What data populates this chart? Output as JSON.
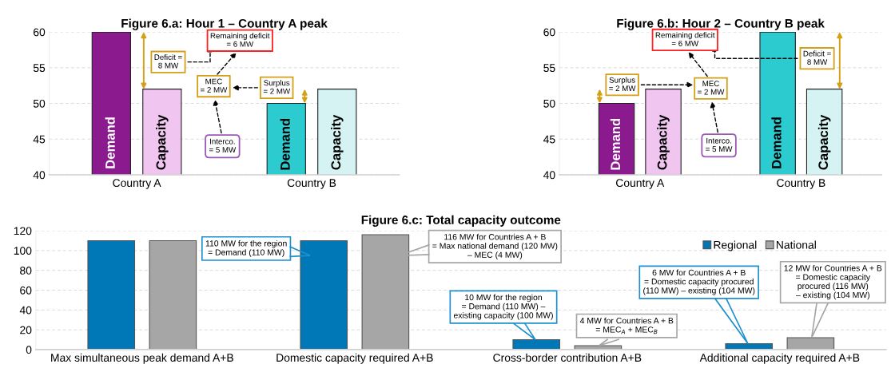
{
  "chart_data": [
    {
      "type": "bar",
      "title": "Figure 6.a: Hour 1 – Country A peak",
      "categories": [
        "Country A",
        "Country B"
      ],
      "series": [
        {
          "name": "Demand",
          "colors": [
            "#8b1a8f",
            "#2ccbd0"
          ],
          "values": [
            60,
            50
          ]
        },
        {
          "name": "Capacity",
          "colors": [
            "#f0c6f0",
            "#d6f3f3"
          ],
          "values": [
            52,
            52
          ]
        }
      ],
      "ylim": [
        40,
        60
      ],
      "yticks": [
        40,
        45,
        50,
        55,
        60
      ],
      "grid": "y",
      "annotations": [
        "Deficit =\n8 MW",
        "Remaining deficit\n= 6 MW",
        "MEC\n= 2 MW",
        "Surplus\n= 2 MW",
        "Interco.\n= 5 MW"
      ]
    },
    {
      "type": "bar",
      "title": "Figure 6.b: Hour 2 – Country B peak",
      "categories": [
        "Country A",
        "Country B"
      ],
      "series": [
        {
          "name": "Demand",
          "colors": [
            "#8b1a8f",
            "#2ccbd0"
          ],
          "values": [
            50,
            60
          ]
        },
        {
          "name": "Capacity",
          "colors": [
            "#f0c6f0",
            "#d6f3f3"
          ],
          "values": [
            52,
            52
          ]
        }
      ],
      "ylim": [
        40,
        60
      ],
      "yticks": [
        40,
        45,
        50,
        55,
        60
      ],
      "grid": "y",
      "annotations": [
        "Deficit =\n8 MW",
        "Remaining deficit\n= 6 MW",
        "MEC\n= 2 MW",
        "Surplus\n= 2 MW",
        "Interco.\n= 5 MW"
      ]
    },
    {
      "type": "bar",
      "title": "Figure 6.c: Total capacity outcome",
      "categories": [
        "Max simultaneous peak demand A+B",
        "Domestic capacity required A+B",
        "Cross-border contribution A+B",
        "Additional capacity required A+B"
      ],
      "series": [
        {
          "name": "Regional",
          "color": "#0077b6",
          "values": [
            110,
            110,
            10,
            6
          ]
        },
        {
          "name": "National",
          "color": "#a6a6a6",
          "values": [
            110,
            116,
            4,
            12
          ]
        }
      ],
      "ylim": [
        0,
        120
      ],
      "yticks": [
        0,
        20,
        40,
        60,
        80,
        100,
        120
      ],
      "grid": "y",
      "legend": "top right",
      "annotations": [
        "110 MW for the region\n= Demand (110 MW)",
        "116 MW for Countries A + B\n= Max national demand (120 MW)\n– MEC (4 MW)",
        "10 MW for the region\n= Demand (110 MW) –\nexisting capacity (100 MW)",
        "4 MW for Countries A + B\n= MEC$_{A}$ + MEC$_{B}$",
        "6 MW for Countries A + B\n= Domestic capacity procured\n(110 MW) – existing (104 MW)",
        "12 MW for Countries A + B\n= Domestic capacity\nprocured (116 MW)\n– existing (104 MW)"
      ]
    }
  ]
}
